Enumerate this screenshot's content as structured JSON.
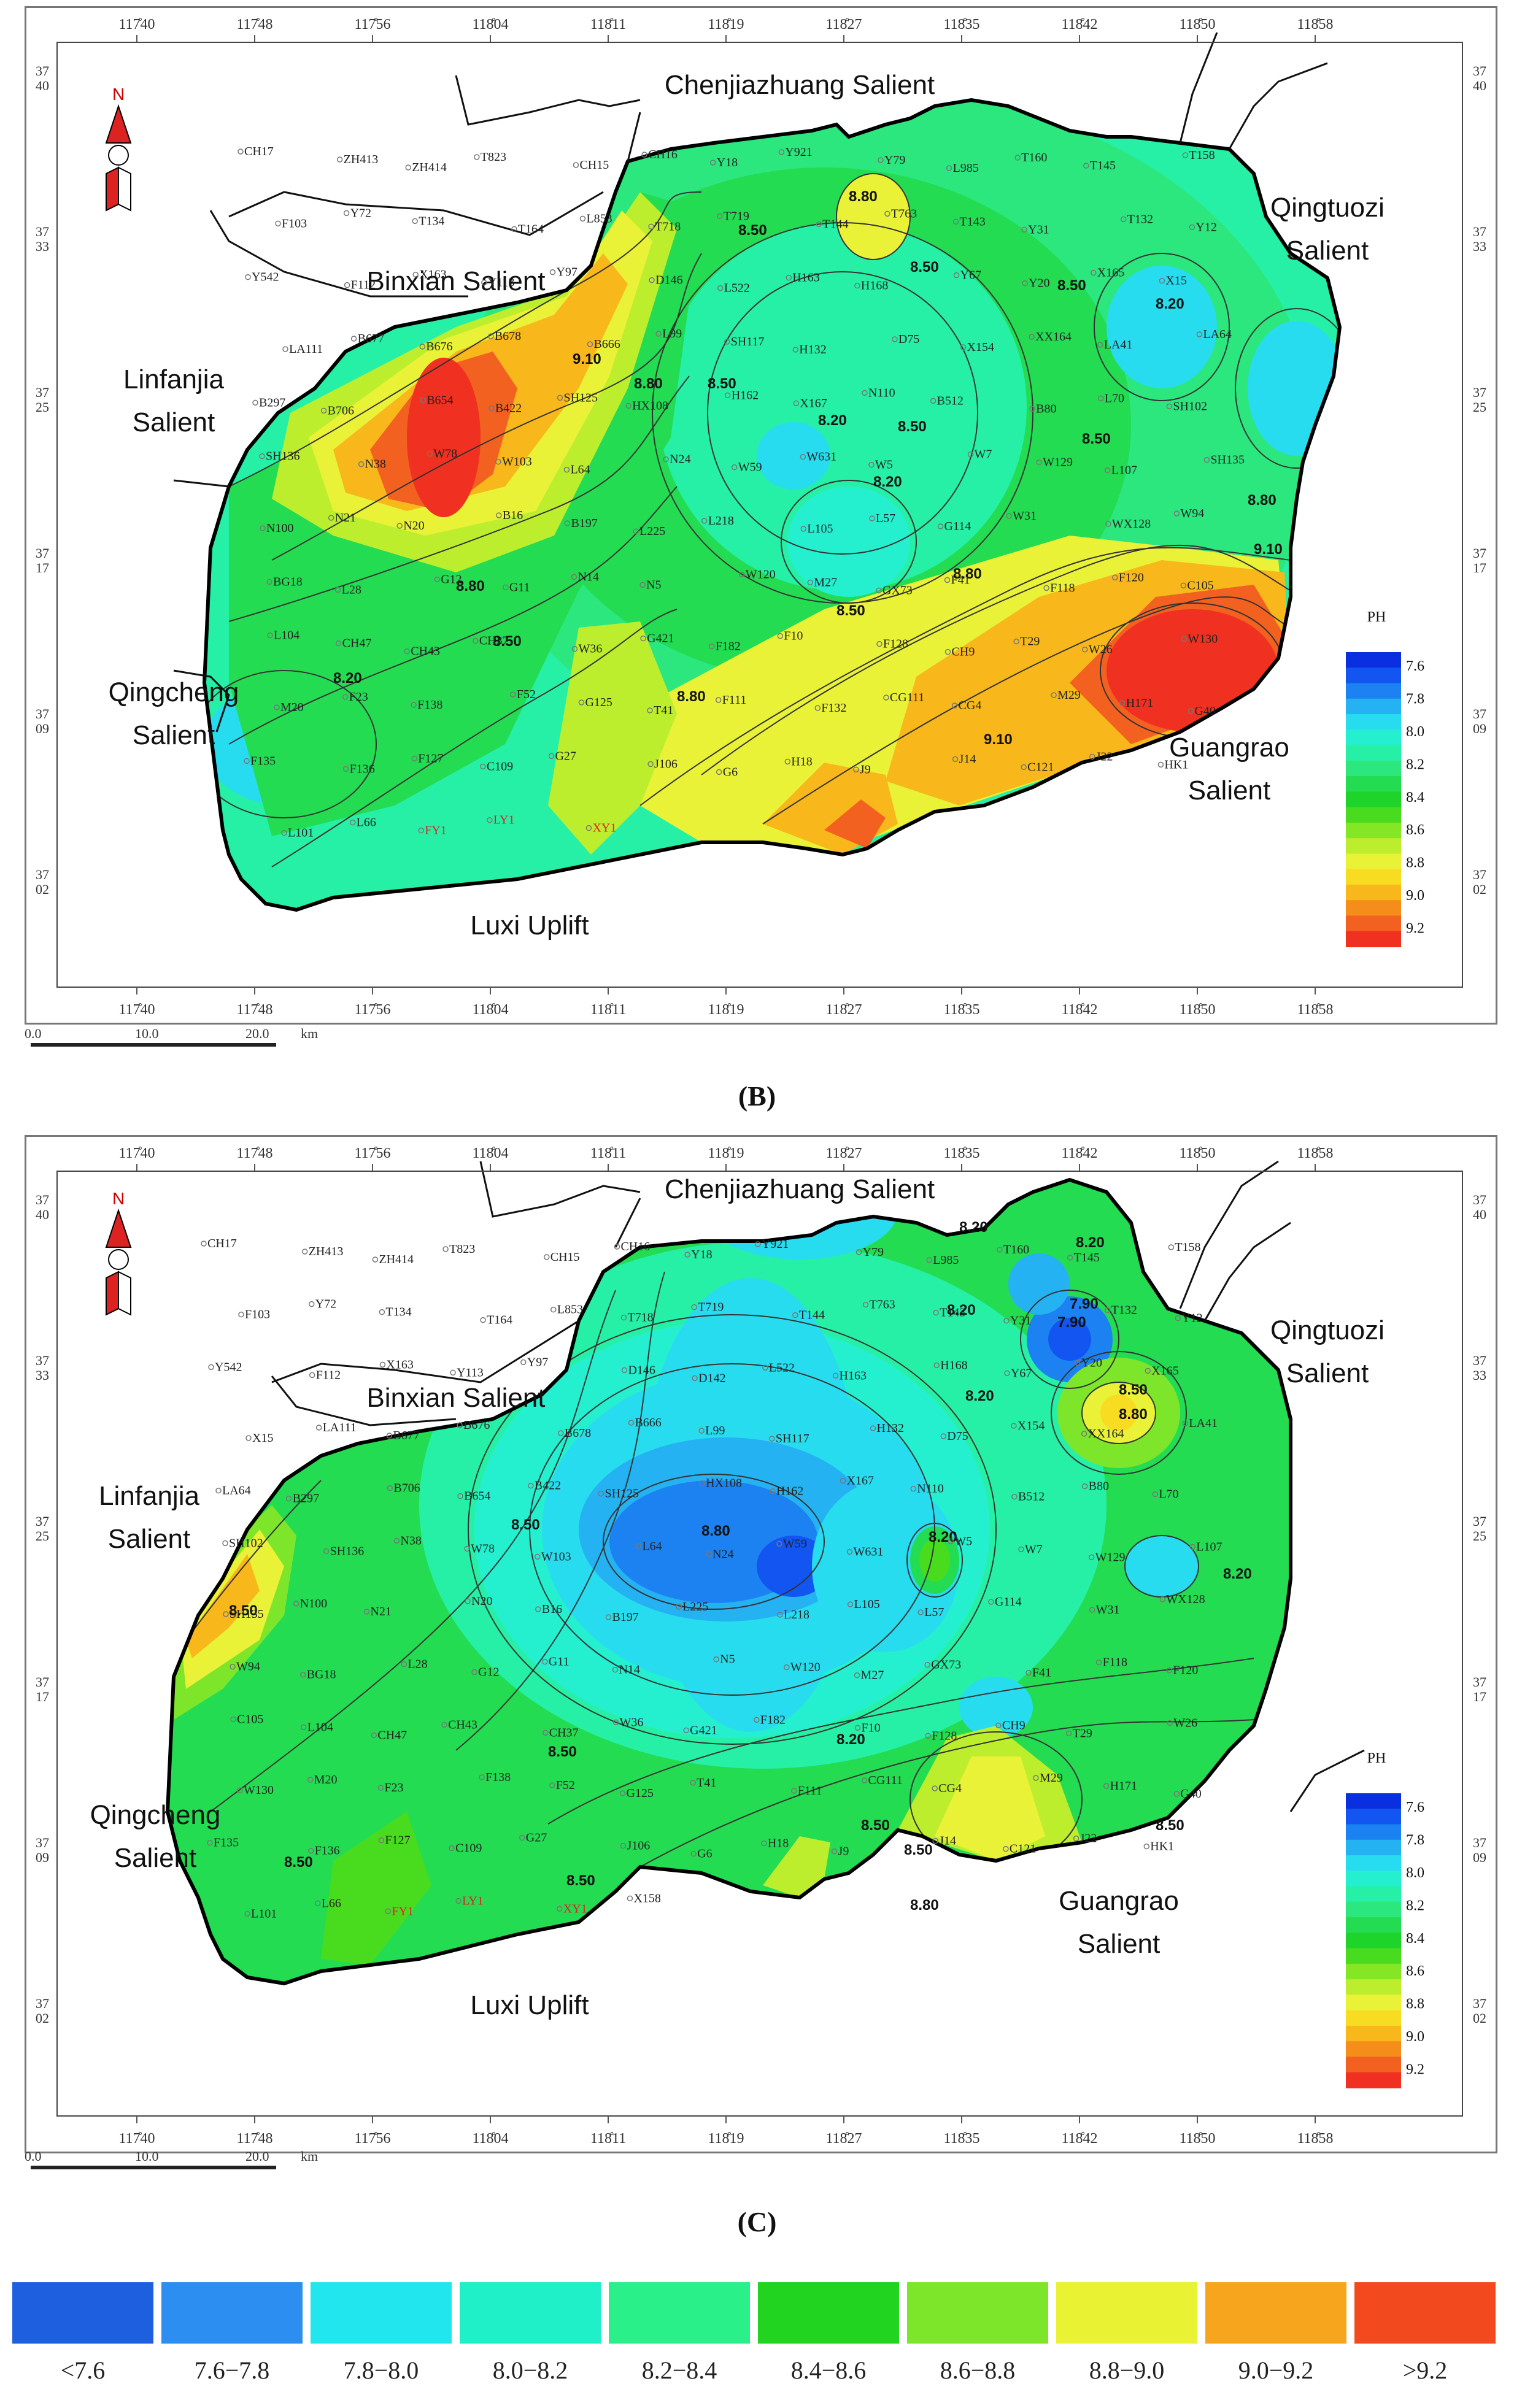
{
  "panels": [
    {
      "id": "B",
      "caption": "(B)",
      "x_ticks": [
        "117̊40",
        "117̊48",
        "117̊56",
        "118̊04",
        "118̊11",
        "118̊19",
        "118̊27",
        "118̊35",
        "118̊42",
        "118̊50",
        "118̊58"
      ],
      "y_ticks": [
        [
          "37",
          "40"
        ],
        [
          "37",
          "33"
        ],
        [
          "37",
          "25"
        ],
        [
          "37",
          "17"
        ],
        [
          "37",
          "09"
        ],
        [
          "37",
          "02"
        ]
      ],
      "regions": {
        "chenjiazhuang": "Chenjiazhuang Salient",
        "qingtuozi": [
          "Qingtuozi",
          "Salient"
        ],
        "binxian": "Binxian Salient",
        "linfanjia": [
          "Linfanjia",
          "Salient"
        ],
        "qingcheng": [
          "Qingcheng",
          "Salient"
        ],
        "guangrao": [
          "Guangrao",
          "Salient"
        ],
        "luxi": "Luxi Uplift"
      },
      "contour_labels": [
        "8.80",
        "8.50",
        "8.50",
        "8.50",
        "8.20",
        "9.10",
        "8.80",
        "8.50",
        "8.20",
        "8.50",
        "8.20",
        "8.50",
        "8.80",
        "9.10",
        "8.50",
        "8.20",
        "8.80",
        "8.80",
        "9.10",
        "8.50",
        "8.80"
      ],
      "well_labels": [
        "CH17",
        "ZH413",
        "ZH414",
        "T823",
        "CH15",
        "CH16",
        "Y18",
        "Y921",
        "Y79",
        "L985",
        "T160",
        "T145",
        "T158",
        "F103",
        "Y72",
        "T134",
        "T164",
        "L853",
        "T718",
        "T719",
        "T144",
        "T763",
        "T143",
        "Y31",
        "T132",
        "Y12",
        "Y542",
        "F112",
        "X163",
        "Y113",
        "Y97",
        "D146",
        "L522",
        "H163",
        "H168",
        "Y67",
        "Y20",
        "X165",
        "X15",
        "LA111",
        "B677",
        "B676",
        "B678",
        "B666",
        "L99",
        "SH117",
        "H132",
        "D75",
        "X154",
        "XX164",
        "LA41",
        "LA64",
        "B297",
        "B706",
        "B654",
        "B422",
        "SH125",
        "HX108",
        "H162",
        "X167",
        "N110",
        "B512",
        "B80",
        "L70",
        "SH102",
        "SH136",
        "N38",
        "W78",
        "W103",
        "L64",
        "N24",
        "W59",
        "W631",
        "W5",
        "W7",
        "W129",
        "L107",
        "SH135",
        "N100",
        "N21",
        "N20",
        "B16",
        "B197",
        "L225",
        "L218",
        "L105",
        "L57",
        "G114",
        "W31",
        "WX128",
        "W94",
        "BG18",
        "L28",
        "G12",
        "G11",
        "N14",
        "N5",
        "W120",
        "M27",
        "GX73",
        "F41",
        "F118",
        "F120",
        "C105",
        "L104",
        "CH47",
        "CH43",
        "CH37",
        "W36",
        "G421",
        "F182",
        "F10",
        "F128",
        "CH9",
        "T29",
        "W26",
        "W130",
        "M20",
        "F23",
        "F138",
        "F52",
        "G125",
        "T41",
        "F111",
        "F132",
        "CG111",
        "CG4",
        "M29",
        "H171",
        "G40",
        "F135",
        "F136",
        "F127",
        "C109",
        "G27",
        "J106",
        "G6",
        "H18",
        "J9",
        "J14",
        "C121",
        "J22",
        "HK1",
        "L101",
        "L66",
        "FY1",
        "LY1",
        "XY1"
      ],
      "scale": {
        "labels": [
          "0.0",
          "10.0",
          "20.0",
          "km"
        ]
      },
      "legend": {
        "title": "PH",
        "ticks": [
          "7.6",
          "7.8",
          "8.0",
          "8.2",
          "8.4",
          "8.6",
          "8.8",
          "9.0",
          "9.2"
        ]
      }
    },
    {
      "id": "C",
      "caption": "(C)",
      "x_ticks": [
        "117̊40",
        "117̊48",
        "117̊56",
        "118̊04",
        "118̊11",
        "118̊19",
        "118̊27",
        "118̊35",
        "118̊42",
        "118̊50",
        "118̊58"
      ],
      "y_ticks": [
        [
          "37",
          "40"
        ],
        [
          "37",
          "33"
        ],
        [
          "37",
          "25"
        ],
        [
          "37",
          "17"
        ],
        [
          "37",
          "09"
        ],
        [
          "37",
          "02"
        ]
      ],
      "regions": {
        "chenjiazhuang": "Chenjiazhuang Salient",
        "qingtuozi": [
          "Qingtuozi",
          "Salient"
        ],
        "binxian": "Binxian Salient",
        "linfanjia": [
          "Linfanjia",
          "Salient"
        ],
        "qingcheng": [
          "Qingcheng",
          "Salient"
        ],
        "guangrao": [
          "Guangrao",
          "Salient"
        ],
        "luxi": "Luxi Uplift"
      },
      "contour_labels": [
        "8.20",
        "8.20",
        "8.20",
        "7.90",
        "8.50",
        "8.80",
        "8.20",
        "8.20",
        "8.50",
        "7.90",
        "8.50",
        "8.20",
        "8.20",
        "8.80",
        "8.50",
        "8.50",
        "8.50",
        "8.50",
        "8.80",
        "8.50",
        "8.50"
      ],
      "well_labels": [
        "CH17",
        "ZH413",
        "ZH414",
        "T823",
        "CH15",
        "CH16",
        "Y18",
        "Y921",
        "Y79",
        "L985",
        "T160",
        "T145",
        "T158",
        "F103",
        "Y72",
        "T134",
        "T164",
        "L853",
        "T718",
        "T719",
        "T144",
        "T763",
        "T143",
        "Y31",
        "T132",
        "Y12",
        "Y542",
        "F112",
        "X163",
        "Y113",
        "Y97",
        "D146",
        "D142",
        "L522",
        "H163",
        "H168",
        "Y67",
        "Y20",
        "X165",
        "X15",
        "LA111",
        "B677",
        "B676",
        "B678",
        "B666",
        "L99",
        "SH117",
        "H132",
        "D75",
        "X154",
        "XX164",
        "LA41",
        "LA64",
        "B297",
        "B706",
        "B654",
        "B422",
        "SH125",
        "HX108",
        "H162",
        "X167",
        "N110",
        "B512",
        "B80",
        "L70",
        "SH102",
        "SH136",
        "N38",
        "W78",
        "W103",
        "L64",
        "N24",
        "W59",
        "W631",
        "W5",
        "W7",
        "W129",
        "L107",
        "SH135",
        "N100",
        "N21",
        "N20",
        "B16",
        "B197",
        "L225",
        "L218",
        "L105",
        "L57",
        "G114",
        "W31",
        "WX128",
        "W94",
        "BG18",
        "L28",
        "G12",
        "G11",
        "N14",
        "N5",
        "W120",
        "M27",
        "GX73",
        "F41",
        "F118",
        "F120",
        "C105",
        "L104",
        "CH47",
        "CH43",
        "CH37",
        "W36",
        "G421",
        "F182",
        "F10",
        "F128",
        "CH9",
        "T29",
        "W26",
        "W130",
        "M20",
        "F23",
        "F138",
        "F52",
        "G125",
        "T41",
        "F111",
        "CG111",
        "CG4",
        "M29",
        "H171",
        "G40",
        "F135",
        "F136",
        "F127",
        "C109",
        "G27",
        "J106",
        "G6",
        "H18",
        "J9",
        "J14",
        "C121",
        "J22",
        "HK1",
        "L101",
        "L66",
        "FY1",
        "LY1",
        "XY1",
        "X158"
      ],
      "scale": {
        "labels": [
          "0.0",
          "10.0",
          "20.0",
          "km"
        ]
      },
      "legend": {
        "title": "PH",
        "ticks": [
          "7.6",
          "7.8",
          "8.0",
          "8.2",
          "8.4",
          "8.6",
          "8.8",
          "9.0",
          "9.2"
        ]
      }
    }
  ],
  "ph_legend": [
    {
      "label": "<7.6",
      "color": "#1e5fe0"
    },
    {
      "label": "7.6−7.8",
      "color": "#2c8ef0"
    },
    {
      "label": "7.8−8.0",
      "color": "#22e6ee"
    },
    {
      "label": "8.0−8.2",
      "color": "#1ff0c8"
    },
    {
      "label": "8.2−8.4",
      "color": "#2af08a"
    },
    {
      "label": "8.4−8.6",
      "color": "#20d420"
    },
    {
      "label": "8.6−8.8",
      "color": "#7ee62a"
    },
    {
      "label": "8.8−9.0",
      "color": "#eaf234"
    },
    {
      "label": "9.0−9.2",
      "color": "#f7a51c"
    },
    {
      "label": ">9.2",
      "color": "#f24a1e"
    }
  ],
  "colorbar_colors": [
    "#0a2fe0",
    "#1255f0",
    "#1c82f2",
    "#24b2f2",
    "#27dcef",
    "#24f0d0",
    "#26f0a6",
    "#2be77e",
    "#23dc52",
    "#1ed42a",
    "#49dc1e",
    "#85e625",
    "#bdee2e",
    "#e9f236",
    "#f8dc22",
    "#f8b71a",
    "#f58d1a",
    "#f26120",
    "#f03020"
  ]
}
